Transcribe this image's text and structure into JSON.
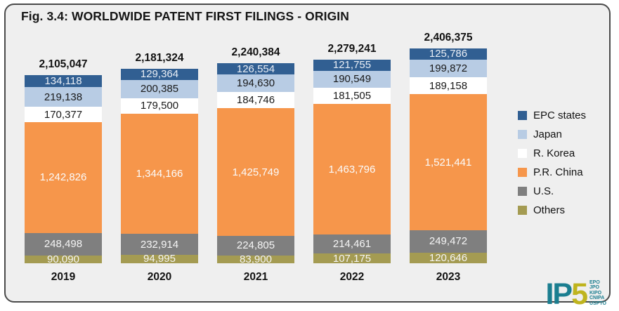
{
  "figure": {
    "title": "Fig. 3.4: WORLDWIDE PATENT FIRST FILINGS - ORIGIN"
  },
  "chart_data": {
    "type": "bar",
    "subtype": "stacked-vertical",
    "stack_order": "top-to-bottom",
    "grid": false,
    "legend_position": "right",
    "categories": [
      "2019",
      "2020",
      "2021",
      "2022",
      "2023"
    ],
    "totals": [
      2105047,
      2181324,
      2240384,
      2279241,
      2406375
    ],
    "series": [
      {
        "name": "EPC states",
        "color": "#315F92",
        "text_color": "#E9EEF5",
        "values": [
          134118,
          129364,
          126554,
          121755,
          125786
        ]
      },
      {
        "name": "Japan",
        "color": "#B8CCE4",
        "text_color": "#1A1A1A",
        "values": [
          219138,
          200385,
          194630,
          190549,
          199872
        ]
      },
      {
        "name": "R. Korea",
        "color": "#FFFFFF",
        "text_color": "#1A1A1A",
        "values": [
          170377,
          179500,
          184746,
          181505,
          189158
        ]
      },
      {
        "name": "P.R. China",
        "color": "#F6964B",
        "text_color": "#FBFBFB",
        "values": [
          1242826,
          1344166,
          1425749,
          1463796,
          1521441
        ]
      },
      {
        "name": "U.S.",
        "color": "#7F7F7F",
        "text_color": "#F5F5F5",
        "values": [
          248498,
          232914,
          224805,
          214461,
          249472
        ]
      },
      {
        "name": "Others",
        "color": "#A49B52",
        "text_color": "#F5F5F5",
        "values": [
          90090,
          94995,
          83900,
          107175,
          120646
        ]
      }
    ]
  },
  "logo": {
    "ip": "IP",
    "five": "5",
    "offices": [
      "EPO",
      "JPO",
      "KIPO",
      "CNIPA",
      "USPTO"
    ],
    "teal": "#1B7E90",
    "yellow": "#BFB41E"
  }
}
